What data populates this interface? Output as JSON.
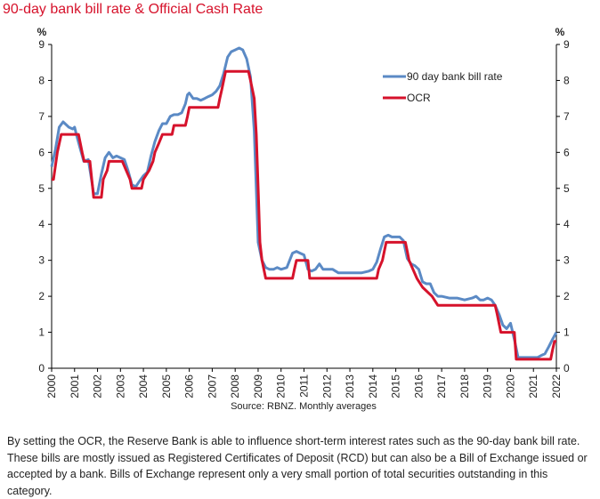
{
  "chart_title": "90-day bank bill rate & Official Cash Rate",
  "colors": {
    "title": "#d6122b",
    "bank_bill": "#5b8ac5",
    "ocr": "#d6122b",
    "axis": "#000000"
  },
  "chart_data": {
    "type": "line",
    "title": "90-day bank bill rate & Official Cash Rate",
    "y_unit_left": "%",
    "y_unit_right": "%",
    "xlim": [
      2000,
      2022
    ],
    "ylim": [
      0,
      9
    ],
    "y_ticks": [
      "0",
      "1",
      "2",
      "3",
      "4",
      "5",
      "6",
      "7",
      "8",
      "9"
    ],
    "x_ticks": [
      "2000",
      "2001",
      "2002",
      "2003",
      "2004",
      "2005",
      "2006",
      "2007",
      "2008",
      "2009",
      "2010",
      "2011",
      "2012",
      "2013",
      "2014",
      "2015",
      "2016",
      "2017",
      "2018",
      "2019",
      "2020",
      "2021",
      "2022"
    ],
    "grid": false,
    "legend_position": "top-right",
    "source": "Source: RBNZ. Monthly averages",
    "series": [
      {
        "name": "90 day bank bill rate",
        "color": "#5b8ac5",
        "points": [
          [
            2000.0,
            5.6
          ],
          [
            2000.17,
            6.1
          ],
          [
            2000.33,
            6.7
          ],
          [
            2000.5,
            6.85
          ],
          [
            2000.75,
            6.7
          ],
          [
            2000.92,
            6.65
          ],
          [
            2001.0,
            6.7
          ],
          [
            2001.08,
            6.5
          ],
          [
            2001.25,
            6.1
          ],
          [
            2001.4,
            5.75
          ],
          [
            2001.6,
            5.8
          ],
          [
            2001.75,
            5.2
          ],
          [
            2001.83,
            4.85
          ],
          [
            2002.0,
            4.85
          ],
          [
            2002.17,
            5.4
          ],
          [
            2002.33,
            5.85
          ],
          [
            2002.5,
            6.0
          ],
          [
            2002.67,
            5.85
          ],
          [
            2002.83,
            5.9
          ],
          [
            2003.0,
            5.85
          ],
          [
            2003.17,
            5.8
          ],
          [
            2003.33,
            5.5
          ],
          [
            2003.5,
            5.1
          ],
          [
            2003.67,
            5.05
          ],
          [
            2003.83,
            5.2
          ],
          [
            2004.0,
            5.35
          ],
          [
            2004.17,
            5.45
          ],
          [
            2004.33,
            5.9
          ],
          [
            2004.5,
            6.3
          ],
          [
            2004.67,
            6.6
          ],
          [
            2004.83,
            6.8
          ],
          [
            2005.0,
            6.8
          ],
          [
            2005.17,
            7.0
          ],
          [
            2005.33,
            7.05
          ],
          [
            2005.5,
            7.05
          ],
          [
            2005.67,
            7.1
          ],
          [
            2005.83,
            7.35
          ],
          [
            2005.92,
            7.6
          ],
          [
            2006.0,
            7.65
          ],
          [
            2006.17,
            7.5
          ],
          [
            2006.33,
            7.5
          ],
          [
            2006.5,
            7.45
          ],
          [
            2006.67,
            7.5
          ],
          [
            2006.83,
            7.55
          ],
          [
            2007.0,
            7.6
          ],
          [
            2007.17,
            7.7
          ],
          [
            2007.33,
            7.85
          ],
          [
            2007.5,
            8.2
          ],
          [
            2007.67,
            8.65
          ],
          [
            2007.83,
            8.8
          ],
          [
            2008.0,
            8.85
          ],
          [
            2008.17,
            8.9
          ],
          [
            2008.33,
            8.85
          ],
          [
            2008.5,
            8.6
          ],
          [
            2008.67,
            8.1
          ],
          [
            2008.83,
            6.6
          ],
          [
            2009.0,
            3.5
          ],
          [
            2009.17,
            3.0
          ],
          [
            2009.33,
            2.8
          ],
          [
            2009.5,
            2.75
          ],
          [
            2009.67,
            2.75
          ],
          [
            2009.83,
            2.8
          ],
          [
            2010.0,
            2.75
          ],
          [
            2010.25,
            2.8
          ],
          [
            2010.5,
            3.2
          ],
          [
            2010.67,
            3.25
          ],
          [
            2010.83,
            3.2
          ],
          [
            2011.0,
            3.15
          ],
          [
            2011.17,
            2.75
          ],
          [
            2011.33,
            2.7
          ],
          [
            2011.5,
            2.75
          ],
          [
            2011.67,
            2.9
          ],
          [
            2011.83,
            2.75
          ],
          [
            2012.0,
            2.75
          ],
          [
            2012.25,
            2.75
          ],
          [
            2012.5,
            2.65
          ],
          [
            2012.75,
            2.65
          ],
          [
            2013.0,
            2.65
          ],
          [
            2013.5,
            2.65
          ],
          [
            2013.83,
            2.7
          ],
          [
            2014.0,
            2.75
          ],
          [
            2014.17,
            2.95
          ],
          [
            2014.33,
            3.3
          ],
          [
            2014.5,
            3.65
          ],
          [
            2014.67,
            3.7
          ],
          [
            2014.83,
            3.65
          ],
          [
            2015.0,
            3.65
          ],
          [
            2015.17,
            3.65
          ],
          [
            2015.33,
            3.55
          ],
          [
            2015.5,
            3.05
          ],
          [
            2015.67,
            2.9
          ],
          [
            2015.83,
            2.85
          ],
          [
            2016.0,
            2.75
          ],
          [
            2016.17,
            2.4
          ],
          [
            2016.33,
            2.35
          ],
          [
            2016.5,
            2.35
          ],
          [
            2016.67,
            2.1
          ],
          [
            2016.83,
            2.0
          ],
          [
            2017.0,
            2.0
          ],
          [
            2017.33,
            1.95
          ],
          [
            2017.67,
            1.95
          ],
          [
            2018.0,
            1.9
          ],
          [
            2018.33,
            1.95
          ],
          [
            2018.5,
            2.0
          ],
          [
            2018.67,
            1.9
          ],
          [
            2018.83,
            1.9
          ],
          [
            2019.0,
            1.95
          ],
          [
            2019.17,
            1.9
          ],
          [
            2019.33,
            1.75
          ],
          [
            2019.5,
            1.5
          ],
          [
            2019.67,
            1.2
          ],
          [
            2019.83,
            1.1
          ],
          [
            2020.0,
            1.25
          ],
          [
            2020.17,
            0.8
          ],
          [
            2020.33,
            0.3
          ],
          [
            2020.5,
            0.3
          ],
          [
            2020.67,
            0.3
          ],
          [
            2020.83,
            0.3
          ],
          [
            2021.0,
            0.3
          ],
          [
            2021.17,
            0.3
          ],
          [
            2021.33,
            0.35
          ],
          [
            2021.5,
            0.4
          ],
          [
            2021.67,
            0.6
          ],
          [
            2021.83,
            0.8
          ],
          [
            2022.0,
            1.0
          ]
        ]
      },
      {
        "name": "OCR",
        "color": "#d6122b",
        "points": [
          [
            2000.0,
            5.25
          ],
          [
            2000.08,
            5.25
          ],
          [
            2000.25,
            6.0
          ],
          [
            2000.42,
            6.5
          ],
          [
            2001.17,
            6.5
          ],
          [
            2001.33,
            6.0
          ],
          [
            2001.42,
            5.75
          ],
          [
            2001.67,
            5.75
          ],
          [
            2001.75,
            5.25
          ],
          [
            2001.83,
            4.75
          ],
          [
            2002.17,
            4.75
          ],
          [
            2002.25,
            5.25
          ],
          [
            2002.42,
            5.5
          ],
          [
            2002.5,
            5.75
          ],
          [
            2003.08,
            5.75
          ],
          [
            2003.25,
            5.5
          ],
          [
            2003.42,
            5.25
          ],
          [
            2003.5,
            5.0
          ],
          [
            2003.92,
            5.0
          ],
          [
            2004.0,
            5.25
          ],
          [
            2004.25,
            5.5
          ],
          [
            2004.42,
            5.75
          ],
          [
            2004.5,
            6.0
          ],
          [
            2004.67,
            6.25
          ],
          [
            2004.83,
            6.5
          ],
          [
            2005.25,
            6.5
          ],
          [
            2005.33,
            6.75
          ],
          [
            2005.83,
            6.75
          ],
          [
            2005.92,
            7.0
          ],
          [
            2006.0,
            7.25
          ],
          [
            2007.25,
            7.25
          ],
          [
            2007.33,
            7.5
          ],
          [
            2007.42,
            7.75
          ],
          [
            2007.5,
            8.0
          ],
          [
            2007.58,
            8.25
          ],
          [
            2008.58,
            8.25
          ],
          [
            2008.67,
            8.0
          ],
          [
            2008.83,
            7.5
          ],
          [
            2008.92,
            6.5
          ],
          [
            2009.0,
            5.0
          ],
          [
            2009.08,
            3.5
          ],
          [
            2009.17,
            3.0
          ],
          [
            2009.33,
            2.5
          ],
          [
            2010.5,
            2.5
          ],
          [
            2010.58,
            2.75
          ],
          [
            2010.67,
            3.0
          ],
          [
            2011.17,
            3.0
          ],
          [
            2011.25,
            2.5
          ],
          [
            2014.17,
            2.5
          ],
          [
            2014.25,
            2.75
          ],
          [
            2014.42,
            3.0
          ],
          [
            2014.5,
            3.25
          ],
          [
            2014.58,
            3.5
          ],
          [
            2015.42,
            3.5
          ],
          [
            2015.5,
            3.25
          ],
          [
            2015.58,
            3.0
          ],
          [
            2015.75,
            2.75
          ],
          [
            2015.92,
            2.5
          ],
          [
            2016.17,
            2.25
          ],
          [
            2016.58,
            2.0
          ],
          [
            2016.83,
            1.75
          ],
          [
            2019.33,
            1.75
          ],
          [
            2019.42,
            1.5
          ],
          [
            2019.58,
            1.0
          ],
          [
            2020.17,
            1.0
          ],
          [
            2020.25,
            0.25
          ],
          [
            2021.75,
            0.25
          ],
          [
            2021.83,
            0.5
          ],
          [
            2021.92,
            0.75
          ],
          [
            2022.0,
            0.75
          ]
        ]
      }
    ]
  },
  "footnote": "By setting the OCR, the Reserve Bank is able to influence short-term interest rates such as the 90-day bank bill rate. These bills are mostly issued as Registered Certificates of Deposit (RCD) but can also be a Bill of Exchange issued or accepted by a bank. Bills of Exchange represent only a very small portion of total securities outstanding in this category."
}
